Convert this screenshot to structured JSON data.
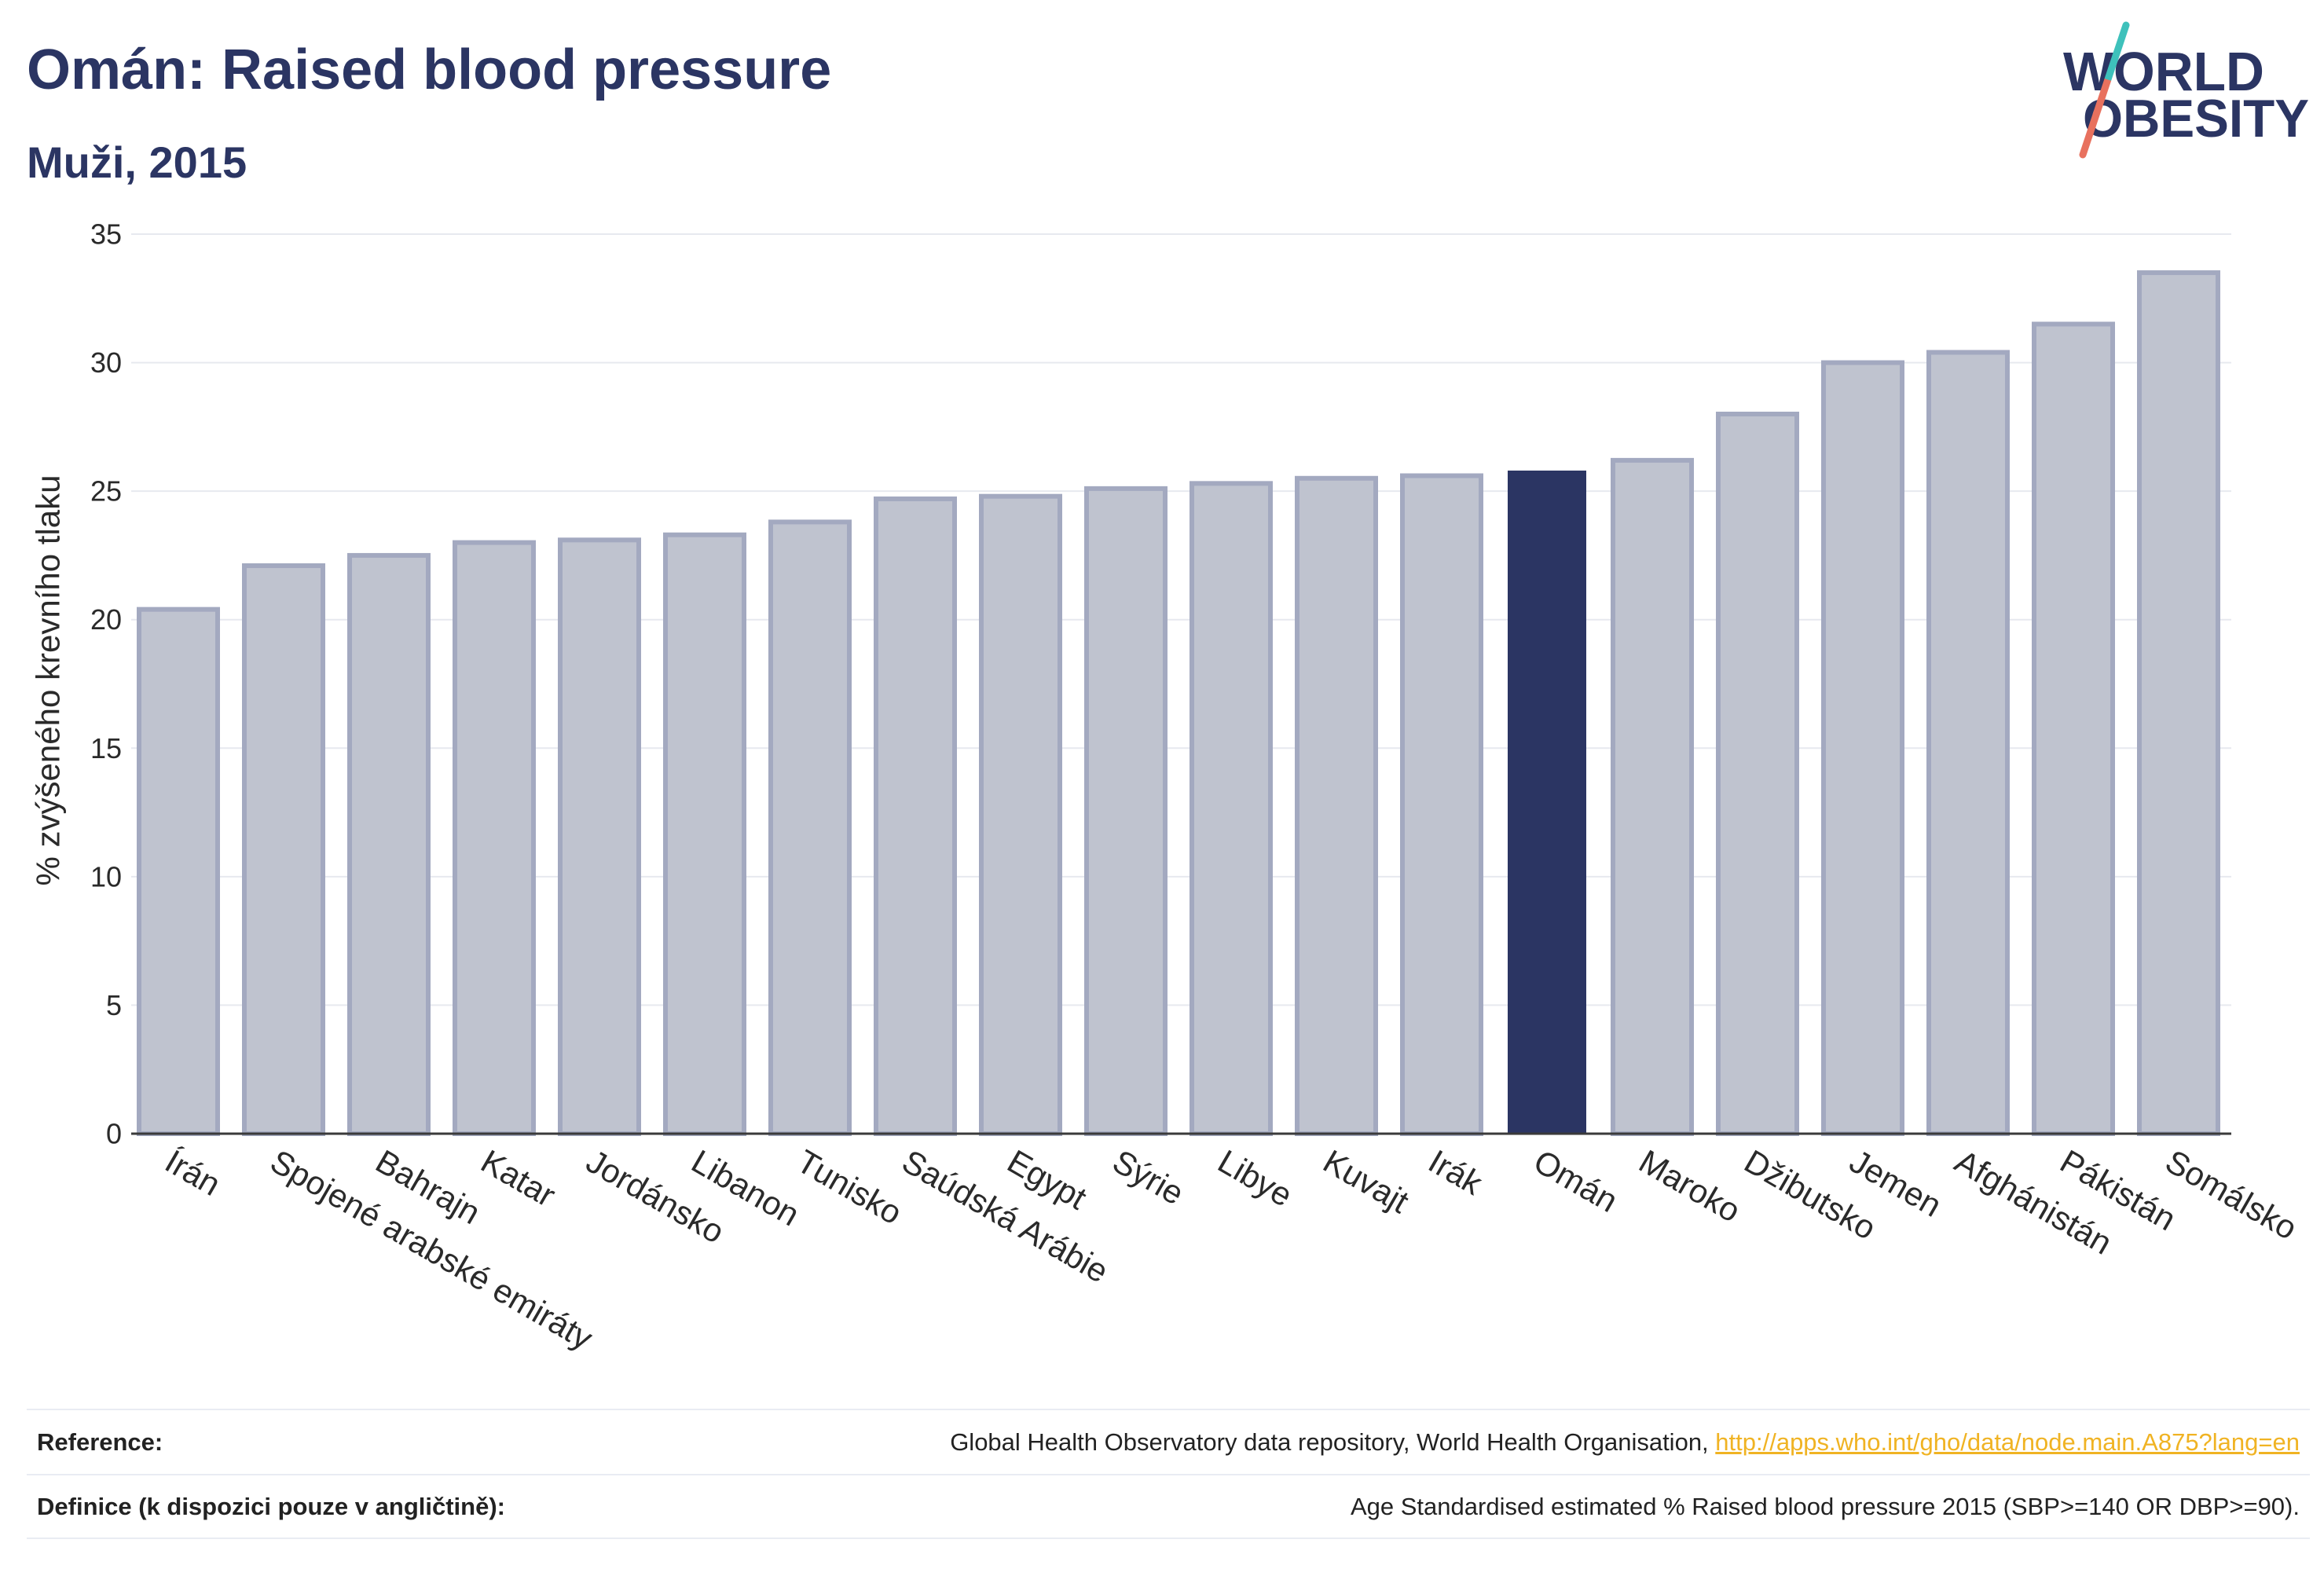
{
  "header": {
    "title": "Omán: Raised blood pressure",
    "subtitle": "Muži, 2015"
  },
  "logo": {
    "line1": "WORLD",
    "line2": "OBESITY"
  },
  "colors": {
    "navy": "#2b3563",
    "bar": "#bfc3cf",
    "bar_border": "#a3a9c0",
    "highlight": "#2b3563",
    "link": "#f0b323",
    "logo_teal": "#3ec1bb",
    "logo_coral": "#e8715e"
  },
  "chart_data": {
    "type": "bar",
    "categories": [
      "Írán",
      "Spojené arabské emiráty",
      "Bahrajn",
      "Katar",
      "Jordánsko",
      "Libanon",
      "Tunisko",
      "Saúdská Arábie",
      "Egypt",
      "Sýrie",
      "Libye",
      "Kuvajt",
      "Irák",
      "Omán",
      "Maroko",
      "Džibutsko",
      "Jemen",
      "Afghánistán",
      "Pákistán",
      "Somálsko"
    ],
    "values": [
      20.4,
      22.1,
      22.5,
      23.0,
      23.1,
      23.3,
      23.8,
      24.7,
      24.8,
      25.1,
      25.3,
      25.5,
      25.6,
      25.8,
      26.2,
      28.0,
      30.0,
      30.4,
      31.5,
      33.5
    ],
    "highlight": "Omán",
    "xlabel": "",
    "ylabel": "% zvýšeného krevního tlaku",
    "ylim": [
      0,
      35
    ],
    "yticks": [
      0,
      5,
      10,
      15,
      20,
      25,
      30,
      35
    ],
    "grid": true
  },
  "footer": {
    "reference": {
      "label": "Reference:",
      "text": "Global Health Observatory data repository, World Health Organisation, ",
      "link": "http://apps.who.int/gho/data/node.main.A875?lang=en"
    },
    "definition": {
      "label": "Definice (k dispozici pouze v angličtině):",
      "text": "Age Standardised estimated % Raised blood pressure 2015 (SBP>=140 OR DBP>=90)."
    }
  }
}
